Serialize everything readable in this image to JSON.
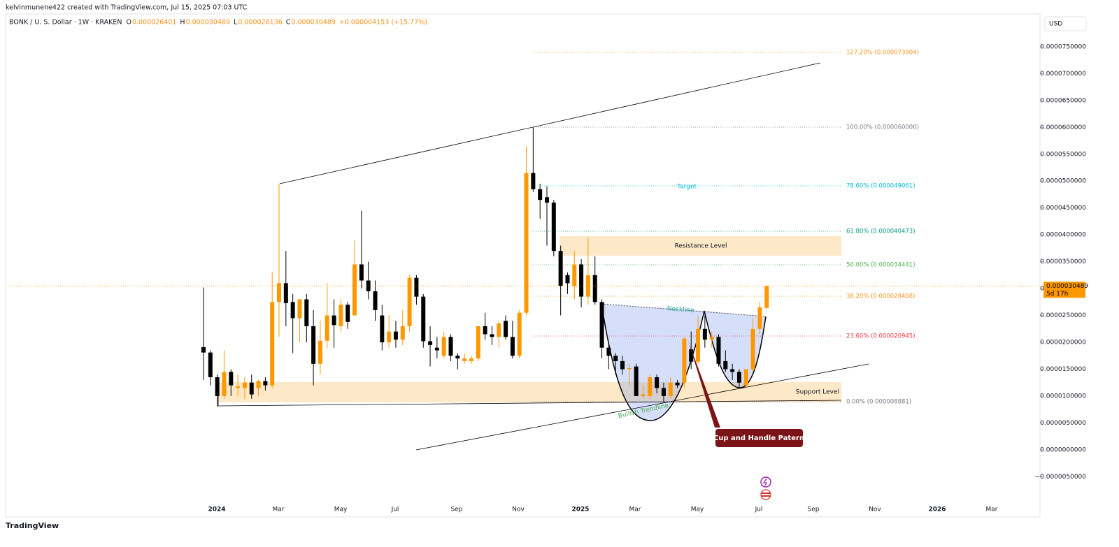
{
  "header": {
    "credit": "kelvinmunene422 created with TradingView.com, Jul 15, 2025 07:03 UTC",
    "symbol": "BONK / U. S. Dollar · 1W · KRAKEN",
    "ohlc": [
      {
        "label": "O",
        "value": "0.000026401"
      },
      {
        "label": "H",
        "value": "0.000030489"
      },
      {
        "label": "L",
        "value": "0.000026136"
      },
      {
        "label": "C",
        "value": "0.000030489"
      }
    ],
    "change": "+0.000004153 (+15.77%)",
    "currency": "USD",
    "logo": "TradingView"
  },
  "annotations": {
    "fib": [
      {
        "label": "127.20% (0.000073904)",
        "color": "#f7931a"
      },
      {
        "label": "100.00% (0.000060000)",
        "color": "#787b86"
      },
      {
        "label": "78.60% (0.000049061)",
        "color": "#00bcd4"
      },
      {
        "label": "61.80% (0.000040473)",
        "color": "#089981"
      },
      {
        "label": "50.00% (0.000034441)",
        "color": "#4caf50"
      },
      {
        "label": "38.20% (0.000028408)",
        "color": "#f7931a"
      },
      {
        "label": "23.60% (0.000020945)",
        "color": "#f23645"
      },
      {
        "label": "0.00% (0.000008881)",
        "color": "#787b86"
      }
    ],
    "target": "Target",
    "resistance": "Resistance Level",
    "support": "Support Level",
    "neckline": "Neckline",
    "trendline": "Bullish Trendline",
    "pattern": "Cup and Handle Patern"
  },
  "price_label": {
    "price": "0.000030489",
    "countdown": "5d 17h"
  },
  "chart_data": {
    "type": "candlestick",
    "up_color": "#ff9800",
    "down_color": "#000000",
    "x_labels": [
      "2024",
      "Mar",
      "May",
      "Jul",
      "Sep",
      "Nov",
      "2025",
      "Mar",
      "May",
      "Jul",
      "Sep",
      "Nov",
      "2026",
      "Mar"
    ],
    "ylim": [
      -1.25e-05,
      8.24e-05
    ],
    "yticks": [
      {
        "value": 7.5e-05,
        "label": "0.0000750000"
      },
      {
        "value": 7e-05,
        "label": "0.0000700000"
      },
      {
        "value": 6.5e-05,
        "label": "0.0000650000"
      },
      {
        "value": 6e-05,
        "label": "0.0000600000"
      },
      {
        "value": 5.5e-05,
        "label": "0.0000550000"
      },
      {
        "value": 5e-05,
        "label": "0.0000500000"
      },
      {
        "value": 4.5e-05,
        "label": "0.0000450000"
      },
      {
        "value": 4e-05,
        "label": "0.0000400000"
      },
      {
        "value": 3.5e-05,
        "label": "0.0000350000"
      },
      {
        "value": 3e-05,
        "label": "0.0000300000"
      },
      {
        "value": 2.5e-05,
        "label": "0.0000250000"
      },
      {
        "value": 2e-05,
        "label": "0.0000200000"
      },
      {
        "value": 1.5e-05,
        "label": "0.0000150000"
      },
      {
        "value": 1e-05,
        "label": "0.0000100000"
      },
      {
        "value": 5e-06,
        "label": "0.0000050000"
      },
      {
        "value": 0,
        "label": "0.0000000000"
      },
      {
        "value": -5e-06,
        "label": "−0.0000050000"
      }
    ],
    "open": [
      1.91e-05,
      1.81e-05,
      1.35e-05,
      1e-05,
      1.45e-05,
      1.15e-05,
      1.15e-05,
      1.25e-05,
      1.15e-05,
      1.28e-05,
      1.2e-05,
      2.75e-05,
      3.1e-05,
      2.75e-05,
      2.45e-05,
      2.8e-05,
      2.3e-05,
      1.6e-05,
      2.03e-05,
      2.5e-05,
      2.3e-05,
      2.7e-05,
      2.5e-05,
      3.45e-05,
      3.15e-05,
      2.95e-05,
      2.5e-05,
      2e-05,
      2.2e-05,
      2.05e-05,
      2.3e-05,
      3.2e-05,
      2.85e-05,
      2.02e-05,
      1.9e-05,
      1.75e-05,
      2.1e-05,
      1.75e-05,
      1.65e-05,
      1.65e-05,
      1.7e-05,
      2.3e-05,
      2.15e-05,
      2.1e-05,
      2.4e-05,
      2.1e-05,
      1.75e-05,
      2.55e-05,
      5.15e-05,
      4.85e-05,
      4.7e-05,
      4.6e-05,
      3.7e-05,
      3.25e-05,
      3.05e-05,
      3.45e-05,
      2.85e-05,
      3.25e-05,
      2.75e-05,
      1.9e-05,
      1.75e-05,
      1.65e-05,
      1.5e-05,
      1.55e-05,
      1e-05,
      1e-05,
      1.35e-05,
      1.15e-05,
      1e-05,
      1.25e-05,
      1.25e-05,
      1.87e-05,
      1.64e-05,
      2.25e-05,
      2.05e-05,
      2.1e-05,
      1.65e-05,
      1.5e-05,
      1.45e-05,
      1.2e-05,
      1.5e-05,
      2.25e-05,
      2.6401e-05
    ],
    "high": [
      3.02e-05,
      1.85e-05,
      1.4e-05,
      1.85e-05,
      1.5e-05,
      1.4e-05,
      1.35e-05,
      1.4e-05,
      1.3e-05,
      1.35e-05,
      3.3e-05,
      4.95e-05,
      3.7e-05,
      2.9e-05,
      2.8e-05,
      2.9e-05,
      2.6e-05,
      2.4e-05,
      3.1e-05,
      2.8e-05,
      2.8e-05,
      2.75e-05,
      3.9e-05,
      4.45e-05,
      3.5e-05,
      3.15e-05,
      2.7e-05,
      2.5e-05,
      2.4e-05,
      2.6e-05,
      3.25e-05,
      3.25e-05,
      2.9e-05,
      2.3e-05,
      2.1e-05,
      2.2e-05,
      2.15e-05,
      1.8e-05,
      1.8e-05,
      1.75e-05,
      2.3e-05,
      2.55e-05,
      2.3e-05,
      2.4e-05,
      2.5e-05,
      2.4e-05,
      2.6e-05,
      5.65e-05,
      6e-05,
      4.95e-05,
      4.9e-05,
      4.65e-05,
      3.8e-05,
      3.3e-05,
      3.7e-05,
      3.55e-05,
      3.95e-05,
      3.6e-05,
      2.8e-05,
      2e-05,
      1.8e-05,
      1.75e-05,
      1.6e-05,
      1.6e-05,
      1.2e-05,
      1.4e-05,
      1.4e-05,
      1.25e-05,
      1.35e-05,
      1.3e-05,
      2.1e-05,
      2.2e-05,
      2.5e-05,
      2.5e-05,
      2.2e-05,
      2.15e-05,
      1.85e-05,
      1.6e-05,
      1.5e-05,
      1.5e-05,
      2.45e-05,
      2.75e-05,
      3.0489e-05
    ],
    "low": [
      1.3e-05,
      1.2e-05,
      8e-06,
      9.5e-06,
      1e-05,
      1e-05,
      9.5e-06,
      9.5e-06,
      1e-05,
      1.1e-05,
      1.15e-05,
      2.1e-05,
      2.3e-05,
      1.8e-05,
      2e-05,
      2e-05,
      1.2e-05,
      1.4e-05,
      1.9e-05,
      1.9e-05,
      2.2e-05,
      2.25e-05,
      2.5e-05,
      3e-05,
      2.8e-05,
      2.4e-05,
      1.85e-05,
      1.9e-05,
      1.9e-05,
      1.95e-05,
      2.2e-05,
      2.7e-05,
      1.9e-05,
      1.55e-05,
      1.7e-05,
      1.7e-05,
      1.65e-05,
      1.5e-05,
      1.6e-05,
      1.6e-05,
      1.65e-05,
      2.05e-05,
      1.95e-05,
      1.9e-05,
      2.05e-05,
      1.7e-05,
      1.7e-05,
      2.5e-05,
      4.8e-05,
      4.3e-05,
      3.8e-05,
      3.6e-05,
      2.5e-05,
      2.9e-05,
      2.8e-05,
      2.65e-05,
      2.7e-05,
      2.7e-05,
      1.7e-05,
      1.5e-05,
      1.4e-05,
      1.4e-05,
      1.2e-05,
      1e-05,
      9.5e-06,
      9.5e-06,
      1.05e-05,
      9e-06,
      9.5e-06,
      1.15e-05,
      1.15e-05,
      1.5e-05,
      1.6e-05,
      1.9e-05,
      1.9e-05,
      1.55e-05,
      1.45e-05,
      1.3e-05,
      1.15e-05,
      1.15e-05,
      1.45e-05,
      2.15e-05,
      2.6136e-05
    ],
    "close": [
      1.81e-05,
      1.35e-05,
      1e-05,
      1.45e-05,
      1.2e-05,
      1.18e-05,
      1.25e-05,
      1.03e-05,
      1.28e-05,
      1.2e-05,
      2.75e-05,
      3.1e-05,
      2.73e-05,
      2.45e-05,
      2.8e-05,
      2.3e-05,
      1.6e-05,
      2.03e-05,
      2.5e-05,
      2.32e-05,
      2.7e-05,
      2.38e-05,
      3.45e-05,
      3.15e-05,
      2.95e-05,
      2.6e-05,
      2e-05,
      2.2e-05,
      2.05e-05,
      2.3e-05,
      3.2e-05,
      2.85e-05,
      2.02e-05,
      1.95e-05,
      1.85e-05,
      2.1e-05,
      1.75e-05,
      1.7e-05,
      1.7e-05,
      1.7e-05,
      2.3e-05,
      2.15e-05,
      2.1e-05,
      2.35e-05,
      2.1e-05,
      1.75e-05,
      2.55e-05,
      5.15e-05,
      4.85e-05,
      4.65e-05,
      4.6e-05,
      3.7e-05,
      3.05e-05,
      3.1e-05,
      3.45e-05,
      2.85e-05,
      3.25e-05,
      2.75e-05,
      1.9e-05,
      1.75e-05,
      1.65e-05,
      1.5e-05,
      1.52e-05,
      1e-05,
      1.03e-05,
      1.35e-05,
      1.15e-05,
      1e-05,
      1.25e-05,
      1.2e-05,
      2.07e-05,
      1.64e-05,
      2.25e-05,
      2.05e-05,
      2.1e-05,
      1.6e-05,
      1.5e-05,
      1.45e-05,
      1.25e-05,
      1.5e-05,
      2.25e-05,
      2.65e-05,
      3.0489e-05
    ]
  }
}
